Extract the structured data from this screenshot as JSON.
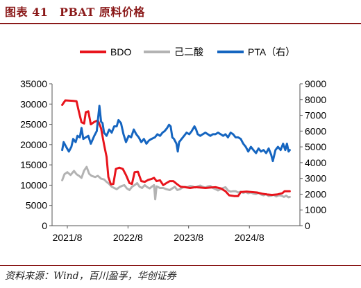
{
  "figure": {
    "title": "图表 41　PBAT 原料价格",
    "source": "资料来源：Wind，百川盈孚，华创证券"
  },
  "chart_data": {
    "type": "line",
    "title": "",
    "xlabel": "",
    "ylabel": "",
    "x_ticks": [
      "2021/8",
      "2022/8",
      "2023/8",
      "2024/8"
    ],
    "xlim": [
      "2021/5",
      "2025/6"
    ],
    "ylim_left": [
      0,
      35000
    ],
    "ylim_right": [
      0,
      9000
    ],
    "y_ticks_left": [
      0,
      5000,
      10000,
      15000,
      20000,
      25000,
      30000,
      35000
    ],
    "y_ticks_right": [
      0,
      1000,
      2000,
      3000,
      4000,
      5000,
      6000,
      7000,
      8000,
      9000
    ],
    "grid": false,
    "legend_position": "top-center",
    "series": [
      {
        "name": "BDO",
        "axis": "left",
        "color": "#e8141c",
        "points": [
          [
            "2021-07-01",
            29800
          ],
          [
            "2021-07-20",
            30900
          ],
          [
            "2021-09-01",
            30800
          ],
          [
            "2021-09-25",
            30700
          ],
          [
            "2021-10-10",
            28000
          ],
          [
            "2021-10-25",
            25500
          ],
          [
            "2021-11-10",
            25200
          ],
          [
            "2021-11-20",
            28000
          ],
          [
            "2021-12-05",
            28200
          ],
          [
            "2021-12-20",
            25000
          ],
          [
            "2022-01-10",
            25600
          ],
          [
            "2022-02-01",
            26000
          ],
          [
            "2022-02-20",
            24000
          ],
          [
            "2022-03-10",
            20000
          ],
          [
            "2022-03-25",
            17000
          ],
          [
            "2022-04-05",
            12000
          ],
          [
            "2022-04-20",
            10200
          ],
          [
            "2022-05-05",
            10300
          ],
          [
            "2022-05-20",
            14000
          ],
          [
            "2022-06-10",
            14300
          ],
          [
            "2022-07-01",
            14000
          ],
          [
            "2022-07-20",
            12500
          ],
          [
            "2022-08-10",
            10500
          ],
          [
            "2022-08-25",
            10300
          ],
          [
            "2022-09-10",
            13200
          ],
          [
            "2022-09-30",
            13300
          ],
          [
            "2022-10-20",
            11000
          ],
          [
            "2022-11-10",
            10800
          ],
          [
            "2022-12-01",
            11300
          ],
          [
            "2022-12-20",
            11500
          ],
          [
            "2023-01-05",
            11800
          ],
          [
            "2023-01-20",
            11000
          ],
          [
            "2023-02-10",
            11200
          ],
          [
            "2023-03-01",
            10000
          ],
          [
            "2023-03-20",
            10500
          ],
          [
            "2023-04-10",
            11000
          ],
          [
            "2023-05-01",
            11000
          ],
          [
            "2023-05-25",
            10200
          ],
          [
            "2023-06-15",
            9600
          ],
          [
            "2023-07-10",
            9500
          ],
          [
            "2023-08-10",
            9300
          ],
          [
            "2023-09-10",
            9500
          ],
          [
            "2023-10-10",
            9400
          ],
          [
            "2023-11-10",
            9300
          ],
          [
            "2023-12-10",
            9400
          ],
          [
            "2024-01-10",
            9500
          ],
          [
            "2024-02-10",
            9200
          ],
          [
            "2024-03-10",
            8500
          ],
          [
            "2024-04-01",
            7500
          ],
          [
            "2024-05-01",
            7300
          ],
          [
            "2024-05-25",
            7300
          ],
          [
            "2024-06-10",
            8300
          ],
          [
            "2024-07-15",
            8400
          ],
          [
            "2024-08-15",
            8300
          ],
          [
            "2024-09-15",
            8200
          ],
          [
            "2024-10-15",
            7900
          ],
          [
            "2024-11-15",
            7700
          ],
          [
            "2024-12-15",
            7600
          ],
          [
            "2025-01-15",
            7700
          ],
          [
            "2025-02-15",
            8000
          ],
          [
            "2025-03-01",
            8500
          ],
          [
            "2025-04-01",
            8500
          ]
        ]
      },
      {
        "name": "己二酸",
        "axis": "left",
        "color": "#b3b3b3",
        "points": [
          [
            "2021-07-01",
            11200
          ],
          [
            "2021-07-15",
            12700
          ],
          [
            "2021-08-01",
            13200
          ],
          [
            "2021-08-20",
            12500
          ],
          [
            "2021-09-10",
            13500
          ],
          [
            "2021-09-25",
            12700
          ],
          [
            "2021-10-10",
            12300
          ],
          [
            "2021-10-25",
            11800
          ],
          [
            "2021-11-10",
            13600
          ],
          [
            "2021-11-25",
            14500
          ],
          [
            "2021-12-10",
            12800
          ],
          [
            "2021-12-25",
            12300
          ],
          [
            "2022-01-15",
            12000
          ],
          [
            "2022-02-01",
            12300
          ],
          [
            "2022-02-20",
            11600
          ],
          [
            "2022-03-10",
            11400
          ],
          [
            "2022-03-25",
            10800
          ],
          [
            "2022-04-10",
            10300
          ],
          [
            "2022-04-25",
            9600
          ],
          [
            "2022-05-10",
            9300
          ],
          [
            "2022-05-25",
            9000
          ],
          [
            "2022-06-10",
            9500
          ],
          [
            "2022-06-25",
            9800
          ],
          [
            "2022-07-10",
            10000
          ],
          [
            "2022-07-25",
            9200
          ],
          [
            "2022-08-10",
            8800
          ],
          [
            "2022-08-25",
            9600
          ],
          [
            "2022-09-10",
            10000
          ],
          [
            "2022-09-25",
            10500
          ],
          [
            "2022-10-10",
            9600
          ],
          [
            "2022-10-25",
            9300
          ],
          [
            "2022-11-10",
            10000
          ],
          [
            "2022-11-25",
            9500
          ],
          [
            "2022-12-10",
            9200
          ],
          [
            "2022-12-25",
            9700
          ],
          [
            "2023-01-05",
            10000
          ],
          [
            "2023-01-12",
            6500
          ],
          [
            "2023-01-20",
            9700
          ],
          [
            "2023-02-10",
            9300
          ],
          [
            "2023-03-01",
            9300
          ],
          [
            "2023-03-20",
            9000
          ],
          [
            "2023-04-10",
            8800
          ],
          [
            "2023-04-25",
            9200
          ],
          [
            "2023-05-10",
            9600
          ],
          [
            "2023-05-25",
            8800
          ],
          [
            "2023-06-10",
            9000
          ],
          [
            "2023-06-25",
            9400
          ],
          [
            "2023-07-10",
            9600
          ],
          [
            "2023-07-25",
            9500
          ],
          [
            "2023-08-10",
            9800
          ],
          [
            "2023-08-25",
            9700
          ],
          [
            "2023-09-10",
            9400
          ],
          [
            "2023-09-25",
            9700
          ],
          [
            "2023-10-10",
            9900
          ],
          [
            "2023-10-25",
            9600
          ],
          [
            "2023-11-10",
            9400
          ],
          [
            "2023-11-25",
            9700
          ],
          [
            "2023-12-10",
            9800
          ],
          [
            "2023-12-25",
            9300
          ],
          [
            "2024-01-10",
            9000
          ],
          [
            "2024-01-25",
            8700
          ],
          [
            "2024-02-10",
            9000
          ],
          [
            "2024-02-25",
            9300
          ],
          [
            "2024-03-10",
            9500
          ],
          [
            "2024-03-25",
            8700
          ],
          [
            "2024-04-10",
            8400
          ],
          [
            "2024-04-25",
            8500
          ],
          [
            "2024-05-10",
            8500
          ],
          [
            "2024-05-25",
            8200
          ],
          [
            "2024-06-10",
            8400
          ],
          [
            "2024-06-25",
            8100
          ],
          [
            "2024-07-10",
            8300
          ],
          [
            "2024-07-25",
            8000
          ],
          [
            "2024-08-10",
            8200
          ],
          [
            "2024-08-25",
            7900
          ],
          [
            "2024-09-10",
            7800
          ],
          [
            "2024-09-25",
            8100
          ],
          [
            "2024-10-10",
            7700
          ],
          [
            "2024-10-25",
            7500
          ],
          [
            "2024-11-10",
            7800
          ],
          [
            "2024-11-25",
            7300
          ],
          [
            "2024-12-10",
            7400
          ],
          [
            "2024-12-25",
            7600
          ],
          [
            "2025-01-10",
            7200
          ],
          [
            "2025-01-25",
            7500
          ],
          [
            "2025-02-10",
            7400
          ],
          [
            "2025-02-25",
            7100
          ],
          [
            "2025-03-10",
            7400
          ],
          [
            "2025-03-25",
            7000
          ],
          [
            "2025-04-01",
            7100
          ]
        ]
      },
      {
        "name": "PTA（右）",
        "axis": "right",
        "color": "#1565c0",
        "points": [
          [
            "2021-07-01",
            4800
          ],
          [
            "2021-07-10",
            5300
          ],
          [
            "2021-07-25",
            5000
          ],
          [
            "2021-08-10",
            4700
          ],
          [
            "2021-08-25",
            5000
          ],
          [
            "2021-09-05",
            5500
          ],
          [
            "2021-09-20",
            5300
          ],
          [
            "2021-10-01",
            5700
          ],
          [
            "2021-10-15",
            5600
          ],
          [
            "2021-10-25",
            6200
          ],
          [
            "2021-11-05",
            5500
          ],
          [
            "2021-11-20",
            5600
          ],
          [
            "2021-12-05",
            5700
          ],
          [
            "2021-12-20",
            5200
          ],
          [
            "2022-01-10",
            5700
          ],
          [
            "2022-01-25",
            6000
          ],
          [
            "2022-02-01",
            6700
          ],
          [
            "2022-02-10",
            7600
          ],
          [
            "2022-02-20",
            6600
          ],
          [
            "2022-03-01",
            6500
          ],
          [
            "2022-03-10",
            5900
          ],
          [
            "2022-03-25",
            5700
          ],
          [
            "2022-04-10",
            6100
          ],
          [
            "2022-04-25",
            5900
          ],
          [
            "2022-05-10",
            6300
          ],
          [
            "2022-05-25",
            6300
          ],
          [
            "2022-06-05",
            6700
          ],
          [
            "2022-06-20",
            6500
          ],
          [
            "2022-07-05",
            5800
          ],
          [
            "2022-07-20",
            5300
          ],
          [
            "2022-08-05",
            5700
          ],
          [
            "2022-08-20",
            5600
          ],
          [
            "2022-09-05",
            6100
          ],
          [
            "2022-09-20",
            5800
          ],
          [
            "2022-10-05",
            5600
          ],
          [
            "2022-10-20",
            5300
          ],
          [
            "2022-11-05",
            5500
          ],
          [
            "2022-11-20",
            5200
          ],
          [
            "2022-12-05",
            5400
          ],
          [
            "2022-12-20",
            5500
          ],
          [
            "2023-01-10",
            5600
          ],
          [
            "2023-01-25",
            5800
          ],
          [
            "2023-02-10",
            5700
          ],
          [
            "2023-02-25",
            5900
          ],
          [
            "2023-03-10",
            6000
          ],
          [
            "2023-03-25",
            6200
          ],
          [
            "2023-04-05",
            6400
          ],
          [
            "2023-04-15",
            6300
          ],
          [
            "2023-04-25",
            5600
          ],
          [
            "2023-05-05",
            5500
          ],
          [
            "2023-05-20",
            5200
          ],
          [
            "2023-05-28",
            4700
          ],
          [
            "2023-06-05",
            5300
          ],
          [
            "2023-06-20",
            5500
          ],
          [
            "2023-07-05",
            5700
          ],
          [
            "2023-07-20",
            5900
          ],
          [
            "2023-08-05",
            5800
          ],
          [
            "2023-08-20",
            6000
          ],
          [
            "2023-09-05",
            6300
          ],
          [
            "2023-09-15",
            6100
          ],
          [
            "2023-09-25",
            5800
          ],
          [
            "2023-10-10",
            5700
          ],
          [
            "2023-10-25",
            5800
          ],
          [
            "2023-11-10",
            5900
          ],
          [
            "2023-11-25",
            5800
          ],
          [
            "2023-12-10",
            5700
          ],
          [
            "2023-12-25",
            5800
          ],
          [
            "2024-01-10",
            5800
          ],
          [
            "2024-01-25",
            5900
          ],
          [
            "2024-02-10",
            5800
          ],
          [
            "2024-02-25",
            5700
          ],
          [
            "2024-03-10",
            5800
          ],
          [
            "2024-03-25",
            5600
          ],
          [
            "2024-04-10",
            5900
          ],
          [
            "2024-04-25",
            5800
          ],
          [
            "2024-05-10",
            5600
          ],
          [
            "2024-05-25",
            5600
          ],
          [
            "2024-06-10",
            5500
          ],
          [
            "2024-06-25",
            5200
          ],
          [
            "2024-07-10",
            5000
          ],
          [
            "2024-07-25",
            4700
          ],
          [
            "2024-08-10",
            5000
          ],
          [
            "2024-08-25",
            4800
          ],
          [
            "2024-09-10",
            4600
          ],
          [
            "2024-09-25",
            4900
          ],
          [
            "2024-10-10",
            4700
          ],
          [
            "2024-10-25",
            4800
          ],
          [
            "2024-11-10",
            4600
          ],
          [
            "2024-11-25",
            4900
          ],
          [
            "2024-12-10",
            4500
          ],
          [
            "2024-12-20",
            4100
          ],
          [
            "2025-01-05",
            4800
          ],
          [
            "2025-01-20",
            5000
          ],
          [
            "2025-02-05",
            4800
          ],
          [
            "2025-02-20",
            5200
          ],
          [
            "2025-03-05",
            4800
          ],
          [
            "2025-03-15",
            5200
          ],
          [
            "2025-03-25",
            4700
          ],
          [
            "2025-04-01",
            4800
          ]
        ]
      }
    ]
  }
}
